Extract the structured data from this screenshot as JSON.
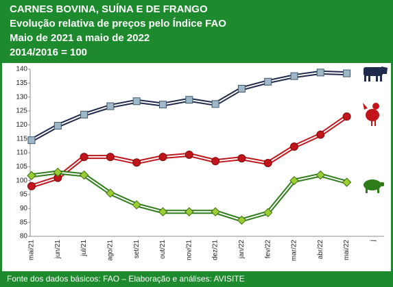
{
  "chart_data": {
    "type": "line",
    "title": "CARNES BOVINA, SUÍNA E DE FRANGO",
    "subtitle": [
      "Evolução relativa de preços pelo Índice FAO",
      "Maio de 2021 a maio de 2022",
      "2014/2016 = 100"
    ],
    "source": "Fonte dos dados básicos: FAO – Elaboração e análises: AVISITE",
    "categories": [
      "mai/21",
      "jun/21",
      "jul/21",
      "ago/21",
      "set/21",
      "out/21",
      "nov/21",
      "dez/21",
      "jan/22",
      "fev/22",
      "mar/22",
      "abr/22",
      "mai/22",
      "j"
    ],
    "series": [
      {
        "color": "#1f2a4d",
        "marker": "square",
        "values": [
          114.5,
          119.7,
          123.7,
          126.7,
          128.5,
          127.3,
          129,
          127.5,
          133,
          135.5,
          137.5,
          138.8,
          138.5,
          null
        ]
      },
      {
        "color": "#c0161b",
        "marker": "circle",
        "values": [
          98,
          101,
          108.5,
          108.5,
          106.5,
          108.5,
          109.3,
          107,
          108,
          106.3,
          112.2,
          116.5,
          123,
          null
        ]
      },
      {
        "color": "#2e7d1a",
        "marker": "diamond",
        "values": [
          101.8,
          103,
          102,
          95.5,
          91.3,
          88.8,
          88.8,
          88.8,
          85.8,
          88.5,
          100,
          102,
          99.4,
          null
        ]
      }
    ],
    "ylim": [
      80,
      140
    ],
    "yticks": [
      80,
      85,
      90,
      95,
      100,
      105,
      110,
      115,
      120,
      125,
      130,
      135,
      140
    ],
    "grid": false
  }
}
